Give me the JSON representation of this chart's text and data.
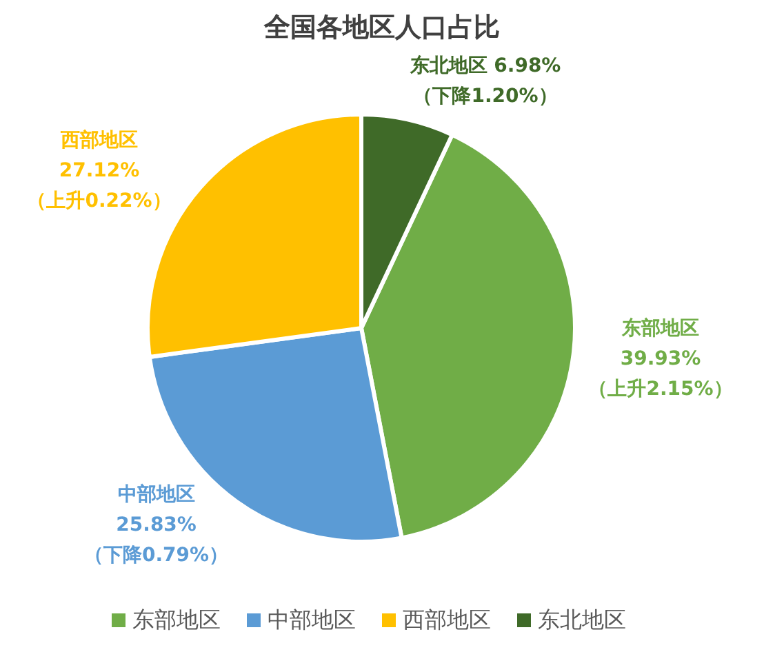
{
  "chart_data": {
    "type": "pie",
    "title": "全国各地区人口占比",
    "categories": [
      "东部地区",
      "中部地区",
      "西部地区",
      "东北地区"
    ],
    "values": [
      39.93,
      25.83,
      27.12,
      6.98
    ],
    "colors": [
      "#70ad47",
      "#5b9bd5",
      "#ffc000",
      "#3f6a28"
    ],
    "value_labels": [
      "39.93%",
      "25.83%",
      "27.12%",
      "6.98%"
    ],
    "annotations": [
      "（上升2.15%）",
      "（下降0.79%）",
      "（上升0.22%）",
      "（下降1.20%）"
    ],
    "legend": "bottom"
  }
}
